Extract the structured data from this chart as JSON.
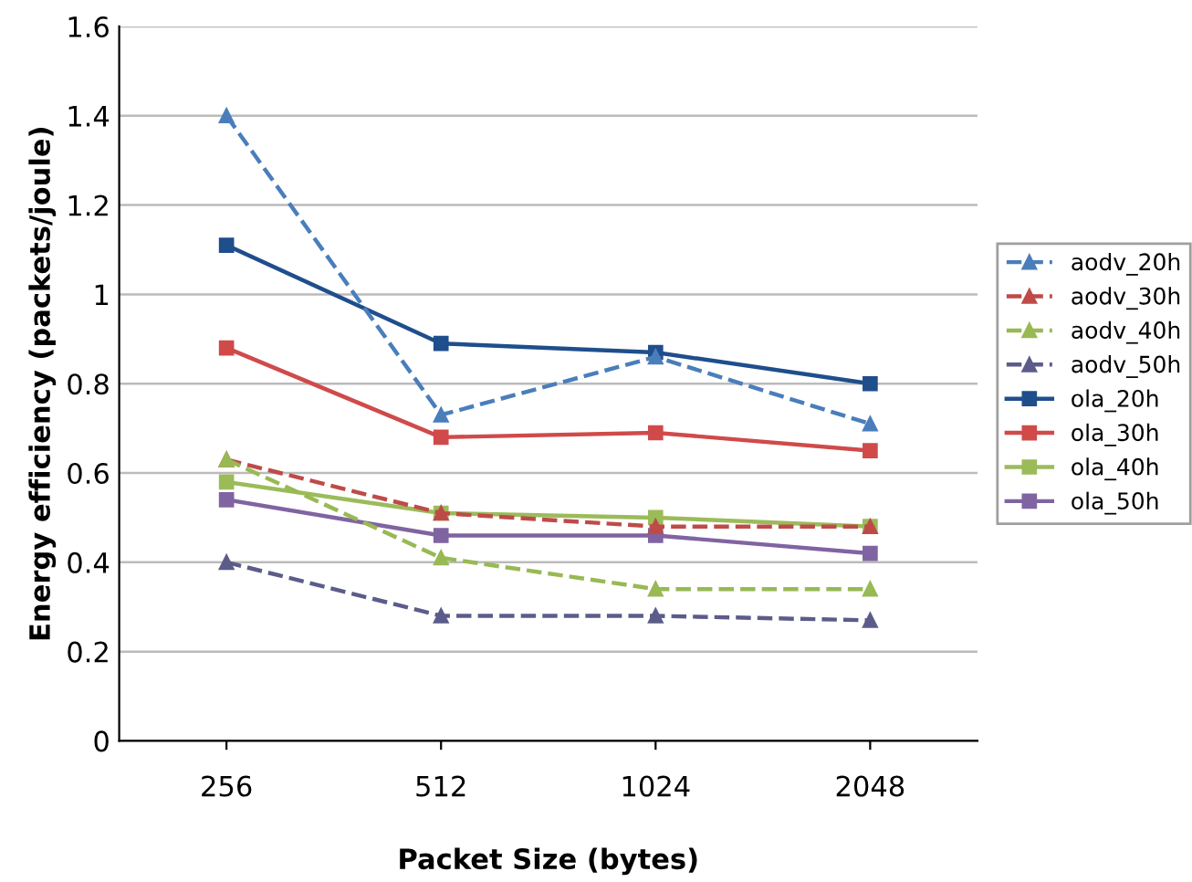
{
  "chart_data": {
    "type": "line",
    "xlabel": "Packet Size (bytes)",
    "ylabel": "Energy efficiency (packets/joule)",
    "categories": [
      "256",
      "512",
      "1024",
      "2048"
    ],
    "ylim": [
      0,
      1.6
    ],
    "yticks": [
      0,
      0.2,
      0.4,
      0.6,
      0.8,
      1,
      1.2,
      1.4,
      1.6
    ],
    "grid": "y",
    "legend": "right",
    "series": [
      {
        "name": "aodv_20h",
        "color": "#4a7ebb",
        "marker": "triangle",
        "line_style": "dashed",
        "values": [
          1.4,
          0.73,
          0.86,
          0.71
        ]
      },
      {
        "name": "aodv_30h",
        "color": "#be4b48",
        "marker": "triangle",
        "line_style": "dashed",
        "values": [
          0.63,
          0.51,
          0.48,
          0.48
        ]
      },
      {
        "name": "aodv_40h",
        "color": "#98b954",
        "marker": "triangle",
        "line_style": "dashed",
        "values": [
          0.63,
          0.41,
          0.34,
          0.34
        ]
      },
      {
        "name": "aodv_50h",
        "color": "#5c5c8a",
        "marker": "triangle",
        "line_style": "dashed",
        "values": [
          0.4,
          0.28,
          0.28,
          0.27
        ]
      },
      {
        "name": "ola_20h",
        "color": "#1f4e8c",
        "marker": "square",
        "line_style": "solid",
        "values": [
          1.11,
          0.89,
          0.87,
          0.8
        ]
      },
      {
        "name": "ola_30h",
        "color": "#d04a4a",
        "marker": "square",
        "line_style": "solid",
        "values": [
          0.88,
          0.68,
          0.69,
          0.65
        ]
      },
      {
        "name": "ola_40h",
        "color": "#9bbb59",
        "marker": "square",
        "line_style": "solid",
        "values": [
          0.58,
          0.51,
          0.5,
          0.48
        ]
      },
      {
        "name": "ola_50h",
        "color": "#8064a2",
        "marker": "square",
        "line_style": "solid",
        "values": [
          0.54,
          0.46,
          0.46,
          0.42
        ]
      }
    ]
  }
}
